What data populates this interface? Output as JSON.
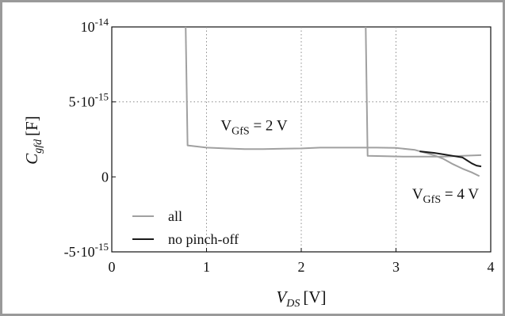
{
  "chart_data": {
    "type": "line",
    "x_axis": {
      "label_main": "V",
      "label_sub": "DS",
      "label_unit": "[V]",
      "range": [
        0,
        4
      ],
      "ticks": [
        0,
        1,
        2,
        3,
        4
      ],
      "tick_labels": [
        "0",
        "1",
        "2",
        "3",
        "4"
      ],
      "gridlines": [
        1,
        2,
        3
      ]
    },
    "y_axis": {
      "label_main": "C",
      "label_sub": "gfd",
      "label_unit": "[F]",
      "range": [
        -5e-15,
        1e-14
      ],
      "ticks": [
        -5e-15,
        0,
        5e-15,
        1e-14
      ],
      "tick_labels": [
        {
          "base": "-5·10",
          "exp": "-15"
        },
        {
          "base": "0",
          "exp": ""
        },
        {
          "base": "5·10",
          "exp": "-15"
        },
        {
          "base": "10",
          "exp": "-14"
        }
      ],
      "gridlines": [
        5e-15
      ]
    },
    "grid": "dotted",
    "legend": {
      "placement": "bottom-left",
      "entries": [
        {
          "label": "all",
          "color": "#a0a0a0"
        },
        {
          "label": "no pinch-off",
          "color": "#1a1a1a"
        }
      ]
    },
    "annotations": [
      {
        "main": "V",
        "sub": "GfS",
        "rest": " = 2 V",
        "x": 1.15,
        "y": 3.1e-15
      },
      {
        "main": "V",
        "sub": "GfS",
        "rest": " = 4 V",
        "x": 3.17,
        "y": -1.45e-15
      }
    ],
    "series": [
      {
        "legend_index": 0,
        "color": "#a0a0a0",
        "points": [
          [
            0.78,
            1e-14
          ],
          [
            0.8,
            2.1e-15
          ],
          [
            1.0,
            1.95e-15
          ],
          [
            1.2,
            1.9e-15
          ],
          [
            1.4,
            1.85e-15
          ],
          [
            1.6,
            1.85e-15
          ],
          [
            1.8,
            1.88e-15
          ],
          [
            2.0,
            1.9e-15
          ],
          [
            2.2,
            1.95e-15
          ],
          [
            2.4,
            1.95e-15
          ],
          [
            2.6,
            1.95e-15
          ],
          [
            2.8,
            1.95e-15
          ],
          [
            3.0,
            1.93e-15
          ],
          [
            3.2,
            1.8e-15
          ],
          [
            3.4,
            1.45e-15
          ],
          [
            3.5,
            1.2e-15
          ],
          [
            3.6,
            8.5e-16
          ],
          [
            3.7,
            5.5e-16
          ],
          [
            3.8,
            3e-16
          ],
          [
            3.88,
            5e-17
          ]
        ]
      },
      {
        "legend_index": 0,
        "color": "#a0a0a0",
        "points": [
          [
            2.68,
            1e-14
          ],
          [
            2.7,
            1.4e-15
          ],
          [
            2.9,
            1.38e-15
          ],
          [
            3.1,
            1.35e-15
          ],
          [
            3.3,
            1.35e-15
          ],
          [
            3.5,
            1.35e-15
          ],
          [
            3.7,
            1.4e-15
          ],
          [
            3.9,
            1.45e-15
          ]
        ]
      },
      {
        "legend_index": 1,
        "color": "#1a1a1a",
        "points": [
          [
            3.25,
            1.7e-15
          ],
          [
            3.4,
            1.6e-15
          ],
          [
            3.5,
            1.5e-15
          ],
          [
            3.6,
            1.4e-15
          ],
          [
            3.7,
            1.3e-15
          ],
          [
            3.75,
            1.1e-15
          ],
          [
            3.8,
            9e-16
          ],
          [
            3.85,
            7.5e-16
          ],
          [
            3.9,
            7e-16
          ]
        ]
      }
    ]
  }
}
